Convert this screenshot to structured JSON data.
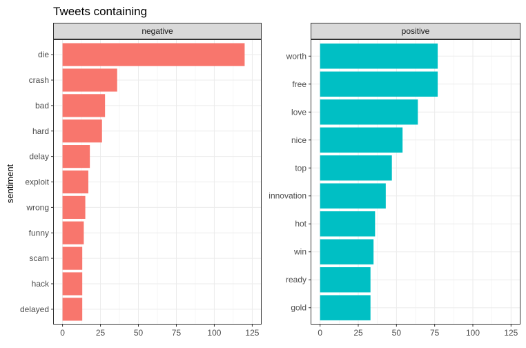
{
  "chart_data": {
    "type": "bar",
    "orientation": "horizontal",
    "title": "Tweets containing",
    "ylabel": "sentiment",
    "xlabel": "",
    "xlim": [
      0,
      125
    ],
    "x_ticks": [
      0,
      25,
      50,
      75,
      100,
      125
    ],
    "grid": true,
    "legend": "none",
    "panels": [
      {
        "name": "negative",
        "color": "#F8766D",
        "categories": [
          "die",
          "crash",
          "bad",
          "hard",
          "delay",
          "exploit",
          "wrong",
          "funny",
          "scam",
          "hack",
          "delayed"
        ],
        "values": [
          120,
          36,
          28,
          26,
          18,
          17,
          15,
          14,
          13,
          13,
          13
        ]
      },
      {
        "name": "positive",
        "color": "#00BFC4",
        "categories": [
          "worth",
          "free",
          "love",
          "nice",
          "top",
          "innovation",
          "hot",
          "win",
          "ready",
          "gold"
        ],
        "values": [
          77,
          77,
          64,
          54,
          47,
          43,
          36,
          35,
          33,
          33
        ]
      }
    ]
  }
}
